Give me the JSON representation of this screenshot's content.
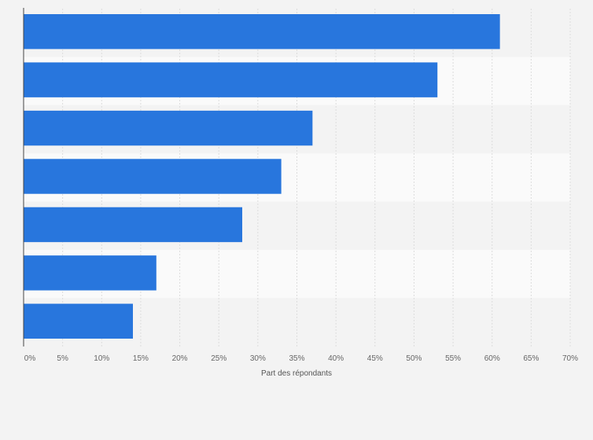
{
  "chart_data": {
    "type": "bar",
    "orientation": "horizontal",
    "categories": [
      "",
      "",
      "",
      "",
      "",
      "",
      ""
    ],
    "values": [
      61,
      53,
      37,
      33,
      28,
      17,
      14
    ],
    "title": "",
    "xlabel": "Part des répondants",
    "ylabel": "",
    "xlim": [
      0,
      70
    ],
    "xticks": [
      "0%",
      "5%",
      "10%",
      "15%",
      "20%",
      "25%",
      "30%",
      "35%",
      "40%",
      "45%",
      "50%",
      "55%",
      "60%",
      "65%",
      "70%"
    ],
    "grid": true,
    "bar_color": "#2876dd"
  }
}
